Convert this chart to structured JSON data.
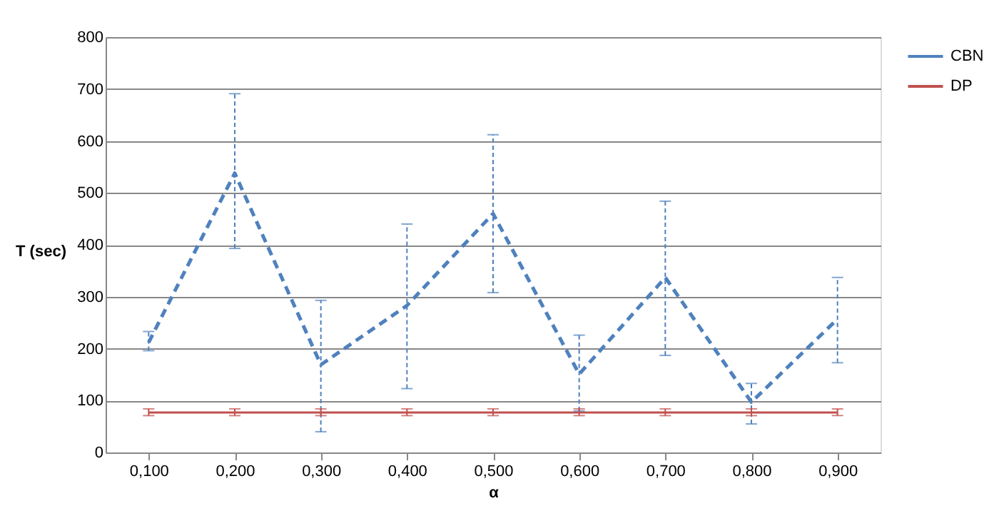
{
  "chart_data": {
    "type": "line",
    "xlabel": "α",
    "ylabel": "T (sec)",
    "categories": [
      "0,100",
      "0,200",
      "0,300",
      "0,400",
      "0,500",
      "0,600",
      "0,700",
      "0,800",
      "0,900"
    ],
    "ylim": [
      0,
      800
    ],
    "yticks": [
      0,
      100,
      200,
      300,
      400,
      500,
      600,
      700,
      800
    ],
    "grid": "y",
    "legend": "right",
    "marker": "none",
    "series": [
      {
        "name": "CBN",
        "color": "#4f81bd",
        "line_style": "dashed",
        "values": [
          212,
          538,
          169,
          283,
          460,
          151,
          337,
          97,
          257
        ],
        "errors": [
          [
            196,
            233
          ],
          [
            393,
            691
          ],
          [
            40,
            293
          ],
          [
            123,
            440
          ],
          [
            308,
            612
          ],
          [
            80,
            226
          ],
          [
            187,
            484
          ],
          [
            55,
            133
          ],
          [
            173,
            337
          ]
        ]
      },
      {
        "name": "DP",
        "color": "#c0504d",
        "line_style": "solid",
        "values": [
          77,
          77,
          77,
          77,
          77,
          77,
          77,
          77,
          77
        ],
        "errors": [
          [
            71,
            84
          ],
          [
            71,
            84
          ],
          [
            71,
            84
          ],
          [
            71,
            84
          ],
          [
            71,
            84
          ],
          [
            71,
            84
          ],
          [
            71,
            84
          ],
          [
            71,
            84
          ],
          [
            71,
            84
          ]
        ]
      }
    ]
  }
}
